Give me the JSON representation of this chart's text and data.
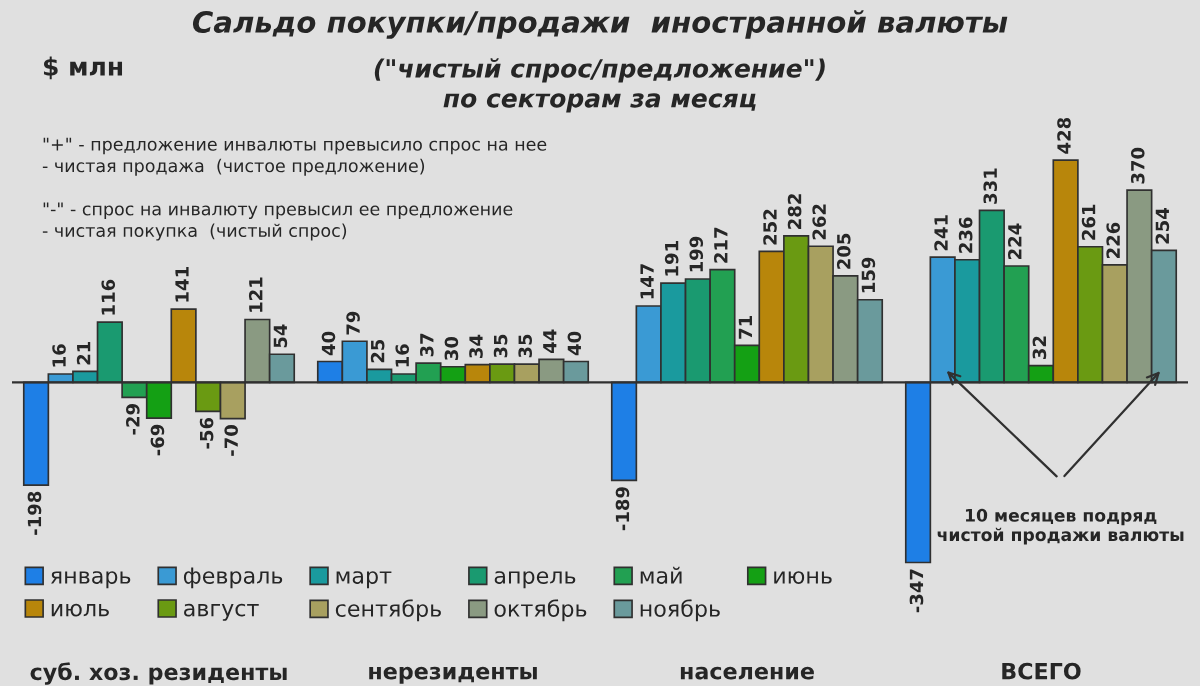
{
  "chart_data": {
    "type": "bar",
    "title": "Сальдо покупки/продажи  иностранной валюты",
    "subtitle": "(\"чистый спрос/предложение\")\nпо секторам за месяц",
    "categories": [
      "суб. хоз. резиденты",
      "нерезиденты",
      "население",
      "ВСЕГО"
    ],
    "series": [
      {
        "name": "январь",
        "color": "#1e7fe6",
        "values": [
          -198,
          40,
          -189,
          -347
        ]
      },
      {
        "name": "февраль",
        "color": "#3a9ad4",
        "values": [
          16,
          79,
          147,
          241
        ]
      },
      {
        "name": "март",
        "color": "#1a9a9e",
        "values": [
          21,
          25,
          191,
          236
        ]
      },
      {
        "name": "апрель",
        "color": "#1a9a70",
        "values": [
          116,
          16,
          199,
          331
        ]
      },
      {
        "name": "май",
        "color": "#22a052",
        "values": [
          -29,
          37,
          217,
          224
        ]
      },
      {
        "name": "июнь",
        "color": "#14a014",
        "values": [
          -69,
          30,
          71,
          32
        ]
      },
      {
        "name": "июль",
        "color": "#b8860b",
        "values": [
          141,
          34,
          252,
          428
        ]
      },
      {
        "name": "август",
        "color": "#6a9a12",
        "values": [
          -56,
          35,
          282,
          261
        ]
      },
      {
        "name": "сентябрь",
        "color": "#a8a060",
        "values": [
          -70,
          35,
          262,
          226
        ]
      },
      {
        "name": "октябрь",
        "color": "#8a9a82",
        "values": [
          121,
          44,
          205,
          370
        ]
      },
      {
        "name": "ноябрь",
        "color": "#6a9a9c",
        "values": [
          54,
          40,
          159,
          254
        ]
      }
    ],
    "data_labels": true,
    "legend": "bottom left",
    "grid": false,
    "tick_labels": "x",
    "annotations": [
      "$ млн",
      "\"+\" - предложение инвалюты превысило спрос на нее\n- чистая продажа  (чистое предложение)\n\n\"-\" - спрос на инвалюту превысил ее предложение\n- чистая покупка  (чистый спрос)",
      "10 месяцев подряд\nчистой продажи валюты"
    ]
  }
}
